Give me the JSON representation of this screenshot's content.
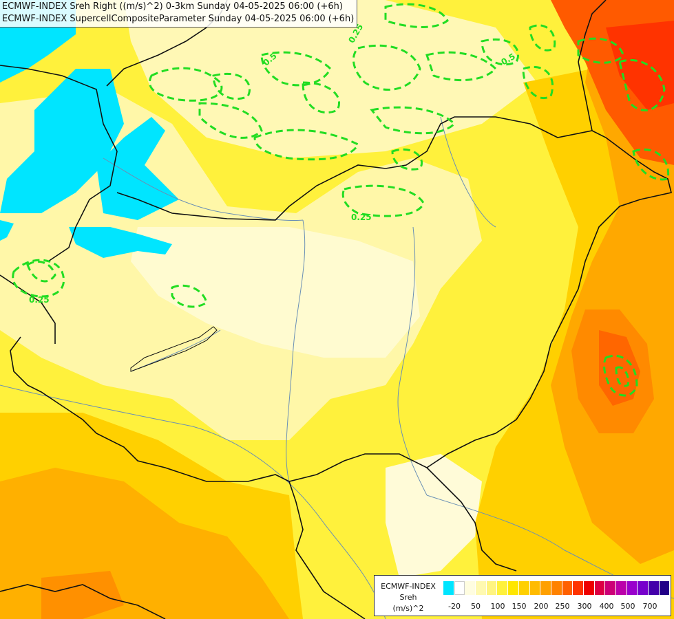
{
  "title": {
    "line1": "ECMWF-INDEX Sreh Right ((m/s)^2) 0-3km Sunday 04-05-2025 06:00 (+6h)",
    "line2": "ECMWF-INDEX SupercellCompositeParameter Sunday 04-05-2025 06:00 (+6h)"
  },
  "contour_labels": [
    "0.25",
    "0.25",
    "0.5",
    "0.5",
    "0.25"
  ],
  "legend": {
    "name": "ECMWF-INDEX",
    "field": "Sreh",
    "unit": "(m/s)^2",
    "colors": [
      "#00e5ff",
      "#ffffff",
      "#fffde0",
      "#fff9b0",
      "#fff480",
      "#fff13c",
      "#ffe600",
      "#ffd000",
      "#ffbb00",
      "#ffa000",
      "#ff8200",
      "#ff6000",
      "#ff3300",
      "#ee0000",
      "#dd0044",
      "#cc0077",
      "#bb00aa",
      "#9900cc",
      "#7700cc",
      "#4400aa",
      "#220088"
    ],
    "ticks": [
      "-20",
      "50",
      "100",
      "150",
      "200",
      "250",
      "300",
      "400",
      "500",
      "700"
    ]
  },
  "colors": {
    "cold": "#00e5ff",
    "pale": "#fffde0",
    "yellow": "#fff13c",
    "amber": "#ffcc00",
    "orange": "#ff9900",
    "red": "#ff3300",
    "contour": "#22dd22"
  }
}
